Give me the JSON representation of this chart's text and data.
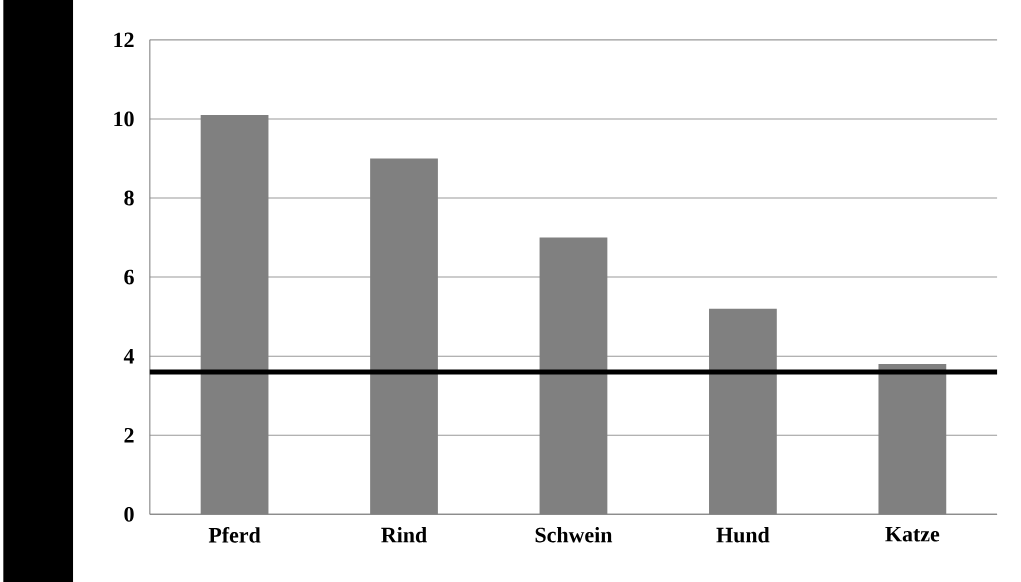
{
  "chart_data": {
    "type": "bar",
    "categories": [
      "Pferd",
      "Rind",
      "Schwein",
      "Hund",
      "Katze"
    ],
    "values": [
      10.1,
      9.0,
      7.0,
      5.2,
      3.8
    ],
    "color": "#808080",
    "ylim": [
      0,
      12
    ],
    "yticks": [
      0,
      2,
      4,
      6,
      8,
      10,
      12
    ],
    "grid": "y",
    "ref_lines": [
      {
        "axis": "y",
        "value": 3.6,
        "color": "#000000"
      }
    ]
  }
}
